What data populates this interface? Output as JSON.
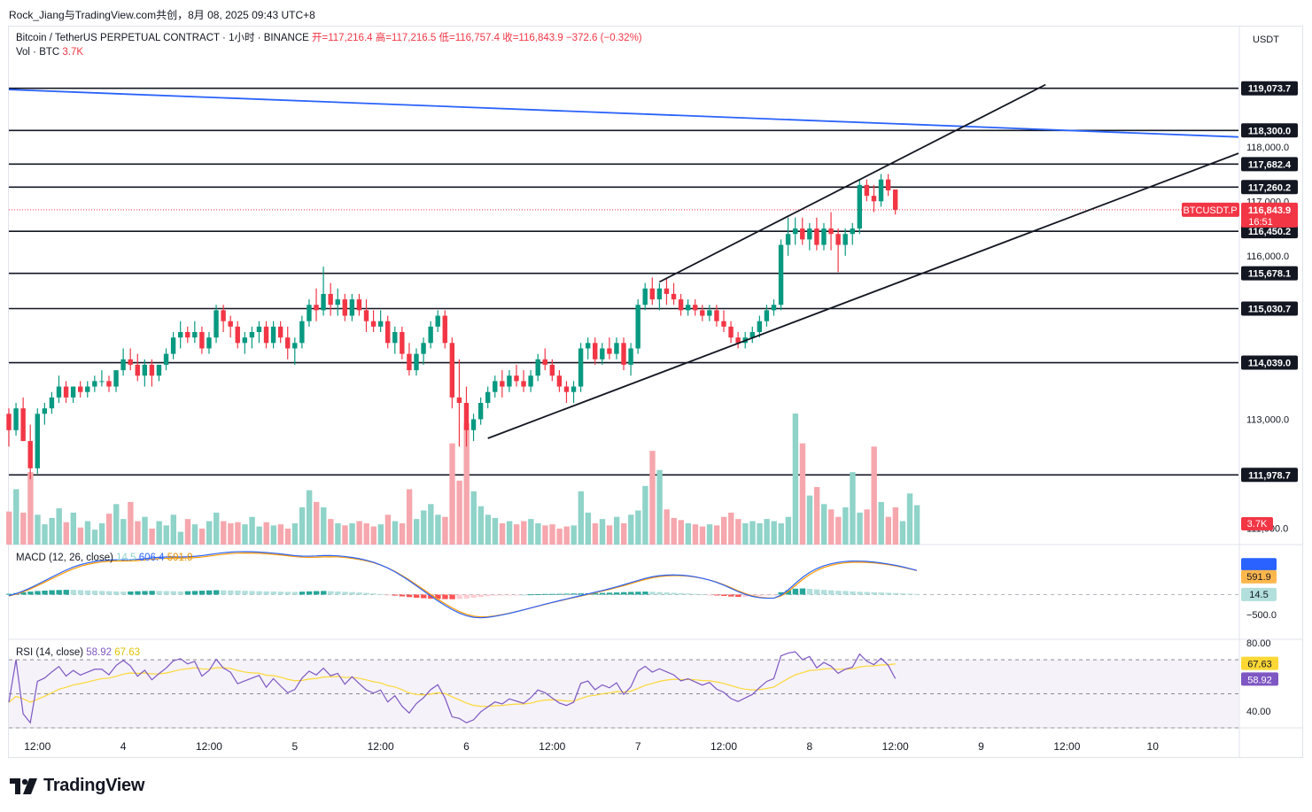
{
  "header": {
    "caption": "Rock_Jiang与TradingView.com共创，8月 08, 2025 09:43 UTC+8"
  },
  "legend": {
    "symbol": "Bitcoin / TetherUS PERPETUAL CONTRACT · 1小时 · BINANCE",
    "open": "开=117,216.4",
    "high": "高=117,216.5",
    "low": "低=116,757.4",
    "close": "收=116,843.9",
    "change": "−372.6 (−0.32%)",
    "vol_label": "Vol · BTC",
    "vol_value": "3.7K"
  },
  "currency": "USDT",
  "macd_legend": {
    "label": "MACD (12, 26, close)",
    "hist": "14.5",
    "macd": "606.4",
    "signal": "591.9"
  },
  "rsi_legend": {
    "label": "RSI (14, close)",
    "rsi": "58.92",
    "ma": "67.63"
  },
  "logo_text": "TradingView",
  "colors": {
    "up": "#089981",
    "down": "#f23645",
    "vol_up": "#8fd3c9",
    "vol_down": "#f5a7ad",
    "trend_blue": "#2962ff",
    "macd": "#2962ff",
    "signal": "#ff9800",
    "rsi": "#7e57c2",
    "rsi_ma": "#fdd835"
  },
  "chart_data": {
    "type": "candlestick",
    "symbol": "BTCUSDT.P",
    "price_axis": {
      "range": [
        110700,
        119800
      ],
      "ticks": [
        {
          "value": 118000,
          "label": "118,000.0"
        },
        {
          "value": 117000,
          "label": "117,000.0"
        },
        {
          "value": 116000,
          "label": "116,000.0"
        },
        {
          "value": 113000,
          "label": "113,000.0"
        },
        {
          "value": 111000,
          "label": "111,000.0"
        }
      ]
    },
    "time_axis": {
      "ticks": [
        {
          "hour": 4,
          "label": "12:00"
        },
        {
          "hour": 16,
          "label": "4"
        },
        {
          "hour": 28,
          "label": "12:00"
        },
        {
          "hour": 40,
          "label": "5"
        },
        {
          "hour": 52,
          "label": "12:00"
        },
        {
          "hour": 64,
          "label": "6"
        },
        {
          "hour": 76,
          "label": "12:00"
        },
        {
          "hour": 88,
          "label": "7"
        },
        {
          "hour": 100,
          "label": "12:00"
        },
        {
          "hour": 112,
          "label": "8"
        },
        {
          "hour": 124,
          "label": "12:00"
        },
        {
          "hour": 136,
          "label": "9"
        },
        {
          "hour": 148,
          "label": "12:00"
        },
        {
          "hour": 160,
          "label": "10"
        }
      ]
    },
    "horizontal_levels": [
      {
        "value": 119073.7,
        "label": "119,073.7"
      },
      {
        "value": 118300.0,
        "label": "118,300.0"
      },
      {
        "value": 117682.4,
        "label": "117,682.4"
      },
      {
        "value": 117260.2,
        "label": "117,260.2"
      },
      {
        "value": 116450.2,
        "label": "116,450.2"
      },
      {
        "value": 115678.1,
        "label": "115,678.1"
      },
      {
        "value": 115030.7,
        "label": "115,030.7"
      },
      {
        "value": 114039.0,
        "label": "114,039.0"
      },
      {
        "value": 111978.7,
        "label": "111,978.7"
      }
    ],
    "trend_lines": [
      {
        "name": "descending",
        "color": "#2962ff",
        "from": [
          0,
          119050
        ],
        "to": [
          172,
          118180
        ]
      },
      {
        "name": "channel_upper",
        "color": "#131722",
        "from": [
          91,
          115520
        ],
        "to": [
          145,
          119140
        ]
      },
      {
        "name": "channel_lower",
        "color": "#131722",
        "from": [
          67,
          112650
        ],
        "to": [
          172,
          117880
        ]
      }
    ],
    "last_price": {
      "value": 116843.9,
      "label": "116,843.9",
      "countdown": "16:51"
    },
    "volume_last": "3.7K",
    "macd_axis": {
      "range": [
        -900,
        1100
      ],
      "ticks": [
        {
          "value": -500,
          "label": "−500.0"
        }
      ]
    },
    "macd_last": {
      "macd": 606.4,
      "signal": 591.9,
      "hist": 14.5
    },
    "rsi_axis": {
      "range": [
        30,
        82
      ],
      "ticks": [
        {
          "value": 80,
          "label": "80.00"
        },
        {
          "value": 40,
          "label": "40.00"
        }
      ],
      "bands": [
        70,
        50,
        30
      ]
    },
    "rsi_last": {
      "rsi": 58.92,
      "ma": 67.63
    },
    "ohlc": [
      [
        113100,
        113200,
        112500,
        112800
      ],
      [
        112800,
        113300,
        112700,
        113200
      ],
      [
        113200,
        113400,
        112600,
        112600
      ],
      [
        112600,
        112900,
        111900,
        112100
      ],
      [
        112100,
        113200,
        112000,
        113100
      ],
      [
        113100,
        113300,
        112900,
        113200
      ],
      [
        113200,
        113500,
        113100,
        113400
      ],
      [
        113400,
        113800,
        113300,
        113600
      ],
      [
        113600,
        113700,
        113300,
        113400
      ],
      [
        113400,
        113600,
        113300,
        113600
      ],
      [
        113600,
        113700,
        113400,
        113500
      ],
      [
        113500,
        113700,
        113400,
        113600
      ],
      [
        113600,
        113800,
        113500,
        113700
      ],
      [
        113700,
        113900,
        113600,
        113700
      ],
      [
        113700,
        113800,
        113500,
        113600
      ],
      [
        113600,
        113900,
        113500,
        113900
      ],
      [
        113900,
        114300,
        113800,
        114100
      ],
      [
        114100,
        114300,
        113900,
        114000
      ],
      [
        114000,
        114200,
        113700,
        113800
      ],
      [
        113800,
        114100,
        113600,
        114000
      ],
      [
        114000,
        114100,
        113600,
        113800
      ],
      [
        113800,
        114000,
        113700,
        114000
      ],
      [
        114000,
        114300,
        113900,
        114200
      ],
      [
        114200,
        114600,
        114100,
        114500
      ],
      [
        114500,
        114800,
        114300,
        114600
      ],
      [
        114600,
        114700,
        114400,
        114500
      ],
      [
        114500,
        114800,
        114400,
        114600
      ],
      [
        114600,
        114700,
        114200,
        114300
      ],
      [
        114300,
        114600,
        114200,
        114500
      ],
      [
        114500,
        115100,
        114400,
        115000
      ],
      [
        115000,
        115100,
        114600,
        114800
      ],
      [
        114800,
        114900,
        114500,
        114700
      ],
      [
        114700,
        114800,
        114300,
        114400
      ],
      [
        114400,
        114600,
        114200,
        114500
      ],
      [
        114500,
        114700,
        114300,
        114600
      ],
      [
        114600,
        114800,
        114400,
        114700
      ],
      [
        114700,
        114800,
        114300,
        114400
      ],
      [
        114400,
        114800,
        114300,
        114700
      ],
      [
        114700,
        114800,
        114400,
        114500
      ],
      [
        114500,
        114700,
        114100,
        114300
      ],
      [
        114300,
        114500,
        114000,
        114400
      ],
      [
        114400,
        114900,
        114300,
        114800
      ],
      [
        114800,
        115200,
        114700,
        115100
      ],
      [
        115100,
        115400,
        114800,
        115000
      ],
      [
        115000,
        115800,
        114900,
        115300
      ],
      [
        115300,
        115500,
        114900,
        115100
      ],
      [
        115100,
        115400,
        114900,
        115200
      ],
      [
        115200,
        115300,
        114800,
        114900
      ],
      [
        114900,
        115300,
        114800,
        115200
      ],
      [
        115200,
        115300,
        114900,
        115000
      ],
      [
        115000,
        115200,
        114600,
        114800
      ],
      [
        114800,
        115000,
        114600,
        114700
      ],
      [
        114700,
        115000,
        114600,
        114800
      ],
      [
        114800,
        114900,
        114300,
        114400
      ],
      [
        114400,
        114700,
        114200,
        114600
      ],
      [
        114600,
        114700,
        114100,
        114200
      ],
      [
        114200,
        114400,
        113800,
        113900
      ],
      [
        113900,
        114300,
        113800,
        114200
      ],
      [
        114200,
        114500,
        114000,
        114400
      ],
      [
        114400,
        114800,
        114300,
        114700
      ],
      [
        114700,
        115000,
        114600,
        114900
      ],
      [
        114900,
        115000,
        114300,
        114400
      ],
      [
        114400,
        114500,
        113200,
        113400
      ],
      [
        113400,
        114100,
        112500,
        113300
      ],
      [
        113300,
        113600,
        112500,
        112800
      ],
      [
        112800,
        113100,
        112600,
        113000
      ],
      [
        113000,
        113400,
        112900,
        113300
      ],
      [
        113300,
        113600,
        113200,
        113500
      ],
      [
        113500,
        113800,
        113400,
        113700
      ],
      [
        113700,
        113900,
        113400,
        113600
      ],
      [
        113600,
        113900,
        113500,
        113800
      ],
      [
        113800,
        114000,
        113600,
        113700
      ],
      [
        113700,
        113900,
        113500,
        113600
      ],
      [
        113600,
        113900,
        113500,
        113800
      ],
      [
        113800,
        114200,
        113700,
        114100
      ],
      [
        114100,
        114300,
        113900,
        114000
      ],
      [
        114000,
        114100,
        113700,
        113800
      ],
      [
        113800,
        113900,
        113500,
        113600
      ],
      [
        113600,
        113700,
        113300,
        113500
      ],
      [
        113500,
        113700,
        113300,
        113600
      ],
      [
        113600,
        114400,
        113500,
        114300
      ],
      [
        114300,
        114500,
        114100,
        114400
      ],
      [
        114400,
        114500,
        114000,
        114100
      ],
      [
        114100,
        114400,
        114000,
        114300
      ],
      [
        114300,
        114500,
        114100,
        114200
      ],
      [
        114200,
        114500,
        114100,
        114400
      ],
      [
        114400,
        114500,
        113900,
        114000
      ],
      [
        114000,
        114400,
        113800,
        114300
      ],
      [
        114300,
        115200,
        114200,
        115100
      ],
      [
        115100,
        115500,
        115000,
        115400
      ],
      [
        115400,
        115600,
        115100,
        115200
      ],
      [
        115200,
        115500,
        115000,
        115400
      ],
      [
        115400,
        115600,
        115100,
        115300
      ],
      [
        115300,
        115500,
        115100,
        115200
      ],
      [
        115200,
        115300,
        114900,
        115000
      ],
      [
        115000,
        115200,
        114900,
        115100
      ],
      [
        115100,
        115200,
        114900,
        115000
      ],
      [
        115000,
        115100,
        114800,
        114900
      ],
      [
        114900,
        115100,
        114800,
        115000
      ],
      [
        115000,
        115100,
        114700,
        114800
      ],
      [
        114800,
        115000,
        114600,
        114700
      ],
      [
        114700,
        114800,
        114400,
        114500
      ],
      [
        114500,
        114600,
        114300,
        114400
      ],
      [
        114400,
        114600,
        114300,
        114500
      ],
      [
        114500,
        114700,
        114400,
        114600
      ],
      [
        114600,
        114900,
        114500,
        114800
      ],
      [
        114800,
        115100,
        114700,
        115000
      ],
      [
        115000,
        115200,
        114900,
        115100
      ],
      [
        115100,
        116300,
        115000,
        116200
      ],
      [
        116200,
        116700,
        116000,
        116400
      ],
      [
        116400,
        116700,
        116200,
        116500
      ],
      [
        116500,
        116700,
        116200,
        116300
      ],
      [
        116300,
        116600,
        116100,
        116500
      ],
      [
        116500,
        116700,
        116100,
        116200
      ],
      [
        116200,
        116600,
        116100,
        116500
      ],
      [
        116500,
        116800,
        116100,
        116400
      ],
      [
        116400,
        116500,
        115700,
        116200
      ],
      [
        116200,
        116500,
        116000,
        116400
      ],
      [
        116400,
        116600,
        116200,
        116500
      ],
      [
        116500,
        117400,
        116400,
        117300
      ],
      [
        117300,
        117400,
        117000,
        117100
      ],
      [
        117100,
        117300,
        116800,
        117000
      ],
      [
        117000,
        117500,
        116900,
        117400
      ],
      [
        117400,
        117500,
        117100,
        117200
      ],
      [
        117216.4,
        117216.5,
        116757.4,
        116843.9
      ]
    ],
    "volume": [
      3.1,
      5.2,
      3.0,
      6.8,
      2.8,
      1.9,
      2.5,
      3.4,
      2.1,
      3.0,
      1.6,
      2.2,
      1.4,
      2.0,
      2.9,
      3.8,
      2.4,
      4.0,
      2.2,
      2.6,
      1.5,
      2.2,
      1.8,
      2.8,
      1.2,
      2.4,
      1.9,
      1.5,
      2.2,
      3.0,
      2.2,
      2.0,
      2.1,
      1.9,
      2.6,
      1.7,
      2.1,
      1.8,
      1.9,
      1.5,
      2.0,
      3.5,
      5.1,
      4.0,
      3.5,
      2.4,
      2.0,
      1.8,
      2.0,
      2.2,
      2.0,
      1.7,
      1.9,
      2.8,
      2.2,
      2.0,
      5.2,
      2.4,
      3.2,
      3.8,
      2.8,
      2.6,
      9.5,
      6.0,
      11.4,
      5.0,
      3.6,
      2.8,
      2.5,
      2.0,
      2.2,
      1.9,
      2.2,
      2.4,
      2.0,
      1.8,
      1.9,
      1.5,
      1.7,
      1.8,
      5.0,
      3.0,
      2.0,
      2.4,
      1.8,
      2.6,
      2.0,
      2.8,
      3.2,
      5.5,
      8.8,
      7.0,
      3.3,
      2.5,
      2.3,
      2.0,
      1.9,
      1.7,
      1.9,
      1.8,
      2.6,
      3.0,
      2.4,
      2.0,
      2.2,
      2.0,
      2.4,
      2.2,
      2.0,
      2.6,
      12.3,
      9.5,
      4.6,
      5.4,
      3.8,
      3.3,
      2.6,
      3.5,
      6.8,
      3.0,
      3.3,
      9.2,
      4.0,
      2.6,
      3.5,
      2.2,
      4.8,
      3.7
    ],
    "macd_hist": [
      20,
      40,
      60,
      75,
      90,
      100,
      110,
      115,
      120,
      118,
      112,
      105,
      98,
      92,
      85,
      80,
      75,
      78,
      85,
      90,
      95,
      92,
      88,
      84,
      80,
      86,
      92,
      98,
      105,
      110,
      108,
      104,
      100,
      95,
      90,
      86,
      82,
      78,
      74,
      70,
      68,
      74,
      82,
      88,
      92,
      86,
      78,
      70,
      62,
      54,
      44,
      30,
      14,
      -4,
      -24,
      -44,
      -62,
      -78,
      -90,
      -102,
      -108,
      -112,
      -115,
      -108,
      -98,
      -80,
      -60,
      -40,
      -26,
      -18,
      -10,
      -4,
      2,
      8,
      12,
      16,
      18,
      20,
      24,
      28,
      30,
      34,
      38,
      42,
      48,
      54,
      62,
      68,
      72,
      76,
      70,
      62,
      54,
      46,
      38,
      28,
      18,
      8,
      -4,
      -18,
      -34,
      -48,
      -58,
      -52,
      -44,
      -32,
      -18,
      -8,
      60,
      110,
      150,
      155,
      145,
      132,
      118,
      106,
      96,
      90,
      80,
      72,
      66,
      58,
      52,
      46,
      38,
      30,
      24,
      14.5
    ]
  }
}
